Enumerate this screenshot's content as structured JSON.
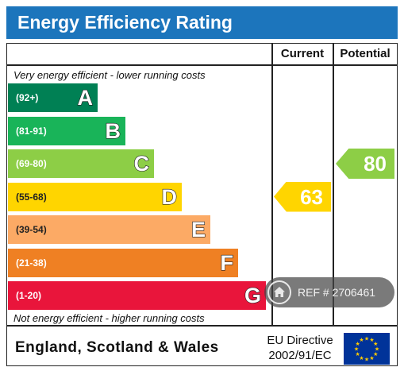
{
  "title": "Energy Efficiency Rating",
  "columns": {
    "current": "Current",
    "potential": "Potential"
  },
  "notes": {
    "top": "Very energy efficient - lower running costs",
    "bottom": "Not energy efficient - higher running costs"
  },
  "bands": [
    {
      "range": "(92+)",
      "letter": "A",
      "color": "#008054"
    },
    {
      "range": "(81-91)",
      "letter": "B",
      "color": "#19b459"
    },
    {
      "range": "(69-80)",
      "letter": "C",
      "color": "#8dce46"
    },
    {
      "range": "(55-68)",
      "letter": "D",
      "color": "#ffd500"
    },
    {
      "range": "(39-54)",
      "letter": "E",
      "color": "#fcaa65"
    },
    {
      "range": "(21-38)",
      "letter": "F",
      "color": "#ef8023"
    },
    {
      "range": "(1-20)",
      "letter": "G",
      "color": "#e9153b"
    }
  ],
  "current_rating": {
    "value": "63",
    "band": "D",
    "color": "#ffd500"
  },
  "potential_rating": {
    "value": "80",
    "band": "C",
    "color": "#8dce46"
  },
  "footer": {
    "region": "England, Scotland & Wales",
    "directive_line1": "EU Directive",
    "directive_line2": "2002/91/EC",
    "flag_icon": "eu-flag-icon"
  },
  "watermark": {
    "text": "REF # 2706461",
    "icon": "home-icon"
  }
}
